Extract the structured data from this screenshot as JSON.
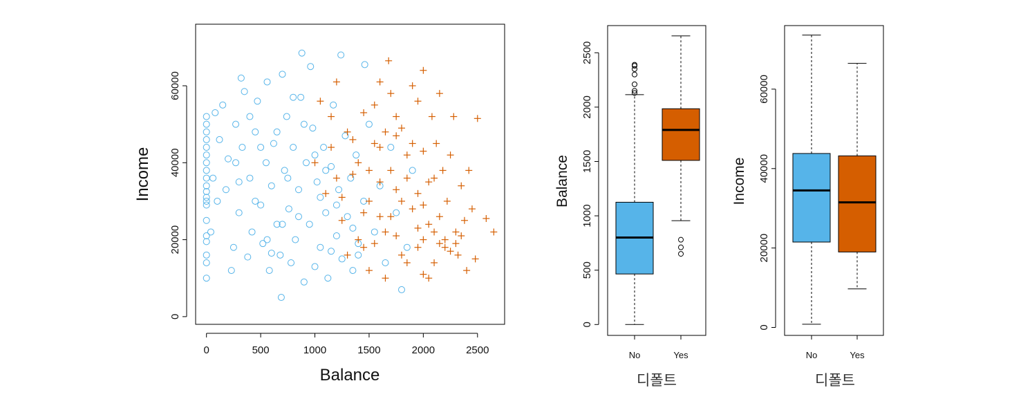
{
  "colors": {
    "no": "#56b4e9",
    "yes": "#d55e00",
    "axis": "#000000"
  },
  "chart_data": [
    {
      "type": "scatter",
      "xlabel": "Balance",
      "ylabel": "Income",
      "xlim": [
        -100,
        2750
      ],
      "ylim": [
        -2000,
        76000
      ],
      "xticks": [
        "0",
        "500",
        "1000",
        "1500",
        "2000",
        "2500"
      ],
      "xtick_values": [
        0,
        500,
        1000,
        1500,
        2000,
        2500
      ],
      "yticks": [
        "0",
        "20000",
        "40000",
        "60000"
      ],
      "ytick_values": [
        0,
        20000,
        40000,
        60000
      ],
      "series": [
        {
          "name": "No",
          "marker": "circle",
          "color": "#56b4e9",
          "points": [
            [
              0,
              10000
            ],
            [
              0,
              14000
            ],
            [
              0,
              16000
            ],
            [
              0,
              19500
            ],
            [
              0,
              21000
            ],
            [
              0,
              25000
            ],
            [
              0,
              29000
            ],
            [
              0,
              30000
            ],
            [
              0,
              31000
            ],
            [
              0,
              32500
            ],
            [
              0,
              34000
            ],
            [
              0,
              36000
            ],
            [
              0,
              38000
            ],
            [
              0,
              40000
            ],
            [
              0,
              42000
            ],
            [
              0,
              44000
            ],
            [
              0,
              46000
            ],
            [
              0,
              48000
            ],
            [
              0,
              50000
            ],
            [
              0,
              52000
            ],
            [
              40,
              22000
            ],
            [
              60,
              36000
            ],
            [
              80,
              53000
            ],
            [
              100,
              30000
            ],
            [
              120,
              46000
            ],
            [
              150,
              55000
            ],
            [
              180,
              33000
            ],
            [
              200,
              41000
            ],
            [
              230,
              12000
            ],
            [
              250,
              18000
            ],
            [
              270,
              50000
            ],
            [
              300,
              27000
            ],
            [
              330,
              44000
            ],
            [
              350,
              58500
            ],
            [
              380,
              15500
            ],
            [
              400,
              36000
            ],
            [
              420,
              22000
            ],
            [
              450,
              48000
            ],
            [
              470,
              56000
            ],
            [
              500,
              29000
            ],
            [
              520,
              19000
            ],
            [
              550,
              40000
            ],
            [
              560,
              61000
            ],
            [
              580,
              12000
            ],
            [
              600,
              34000
            ],
            [
              620,
              45000
            ],
            [
              650,
              24000
            ],
            [
              680,
              16000
            ],
            [
              700,
              63000
            ],
            [
              720,
              38000
            ],
            [
              740,
              52000
            ],
            [
              760,
              28000
            ],
            [
              780,
              14000
            ],
            [
              800,
              44000
            ],
            [
              820,
              20000
            ],
            [
              850,
              33000
            ],
            [
              870,
              57000
            ],
            [
              900,
              9000
            ],
            [
              920,
              40000
            ],
            [
              950,
              24000
            ],
            [
              980,
              49000
            ],
            [
              1000,
              13000
            ],
            [
              1020,
              35000
            ],
            [
              1050,
              18000
            ],
            [
              1080,
              44000
            ],
            [
              1100,
              27000
            ],
            [
              1120,
              10000
            ],
            [
              1150,
              39000
            ],
            [
              1170,
              55000
            ],
            [
              1200,
              21000
            ],
            [
              1220,
              33000
            ],
            [
              1250,
              15000
            ],
            [
              1280,
              47000
            ],
            [
              1300,
              26000
            ],
            [
              1330,
              36000
            ],
            [
              1350,
              12000
            ],
            [
              1380,
              42000
            ],
            [
              1400,
              19000
            ],
            [
              1450,
              30000
            ],
            [
              1500,
              50000
            ],
            [
              1550,
              22000
            ],
            [
              1600,
              34000
            ],
            [
              1650,
              14000
            ],
            [
              1700,
              44000
            ],
            [
              1750,
              27000
            ],
            [
              1800,
              7000
            ],
            [
              1850,
              18000
            ],
            [
              1900,
              38000
            ],
            [
              320,
              62000
            ],
            [
              690,
              5000
            ],
            [
              880,
              68500
            ],
            [
              1240,
              68000
            ],
            [
              1460,
              65500
            ],
            [
              960,
              65000
            ],
            [
              450,
              30000
            ],
            [
              650,
              48000
            ],
            [
              850,
              26000
            ],
            [
              1050,
              31000
            ],
            [
              270,
              40000
            ],
            [
              560,
              20000
            ],
            [
              750,
              36000
            ],
            [
              1150,
              17000
            ],
            [
              1350,
              23000
            ],
            [
              400,
              52000
            ],
            [
              600,
              16500
            ],
            [
              800,
              57000
            ],
            [
              1000,
              42000
            ],
            [
              1200,
              29000
            ],
            [
              1400,
              16000
            ],
            [
              300,
              35000
            ],
            [
              500,
              44000
            ],
            [
              700,
              24000
            ],
            [
              900,
              50000
            ],
            [
              1100,
              38000
            ]
          ]
        },
        {
          "name": "Yes",
          "marker": "plus",
          "color": "#d55e00",
          "points": [
            [
              1000,
              40000
            ],
            [
              1050,
              56000
            ],
            [
              1100,
              32000
            ],
            [
              1150,
              44000
            ],
            [
              1200,
              61000
            ],
            [
              1250,
              25000
            ],
            [
              1300,
              48000
            ],
            [
              1350,
              37000
            ],
            [
              1400,
              20000
            ],
            [
              1450,
              53000
            ],
            [
              1500,
              30000
            ],
            [
              1550,
              45000
            ],
            [
              1600,
              61000
            ],
            [
              1650,
              22000
            ],
            [
              1680,
              66500
            ],
            [
              1700,
              38000
            ],
            [
              1750,
              52000
            ],
            [
              1800,
              16000
            ],
            [
              1850,
              42000
            ],
            [
              1900,
              28000
            ],
            [
              1950,
              56000
            ],
            [
              2000,
              64000
            ],
            [
              2000,
              20000
            ],
            [
              2050,
              35000
            ],
            [
              2080,
              52000
            ],
            [
              2100,
              14000
            ],
            [
              2120,
              45000
            ],
            [
              2150,
              26000
            ],
            [
              2180,
              38000
            ],
            [
              2200,
              18000
            ],
            [
              2220,
              30000
            ],
            [
              2250,
              42000
            ],
            [
              2280,
              52000
            ],
            [
              2300,
              22000
            ],
            [
              2320,
              16000
            ],
            [
              2350,
              34000
            ],
            [
              2380,
              25000
            ],
            [
              2400,
              12000
            ],
            [
              2420,
              38000
            ],
            [
              2450,
              28000
            ],
            [
              2480,
              15000
            ],
            [
              2500,
              51500
            ],
            [
              2580,
              25500
            ],
            [
              2650,
              22000
            ],
            [
              1500,
              12000
            ],
            [
              1650,
              10000
            ],
            [
              1800,
              30000
            ],
            [
              1950,
              18000
            ],
            [
              2050,
              10000
            ],
            [
              2150,
              58000
            ],
            [
              1300,
              16000
            ],
            [
              1400,
              40000
            ],
            [
              1550,
              55000
            ],
            [
              1600,
              35000
            ],
            [
              1700,
              26000
            ],
            [
              1750,
              47000
            ],
            [
              1850,
              36000
            ],
            [
              1950,
              32000
            ],
            [
              2000,
              43000
            ],
            [
              2100,
              22000
            ],
            [
              2200,
              20000
            ],
            [
              2300,
              19000
            ],
            [
              1200,
              36000
            ],
            [
              1450,
              27000
            ],
            [
              1650,
              48000
            ],
            [
              1900,
              60000
            ],
            [
              2050,
              24000
            ],
            [
              2250,
              17000
            ],
            [
              1550,
              19000
            ],
            [
              1750,
              21000
            ],
            [
              1950,
              23000
            ],
            [
              2150,
              19000
            ],
            [
              1850,
              14000
            ],
            [
              2000,
              11000
            ],
            [
              1700,
              58000
            ],
            [
              1350,
              46000
            ],
            [
              1500,
              38000
            ],
            [
              1600,
              44000
            ],
            [
              1800,
              49000
            ],
            [
              1900,
              45000
            ],
            [
              2100,
              36000
            ],
            [
              2350,
              21000
            ],
            [
              2000,
              29000
            ],
            [
              1750,
              33000
            ],
            [
              1600,
              26000
            ],
            [
              1450,
              18000
            ],
            [
              1250,
              31000
            ],
            [
              1150,
              52000
            ]
          ]
        }
      ]
    },
    {
      "type": "boxplot",
      "xlabel": "디폴트",
      "ylabel": "Balance",
      "categories": [
        "No",
        "Yes"
      ],
      "ylim": [
        -100,
        2750
      ],
      "yticks": [
        "0",
        "500",
        "1000",
        "1500",
        "2000",
        "2500"
      ],
      "ytick_values": [
        0,
        500,
        1000,
        1500,
        2000,
        2500
      ],
      "series": [
        {
          "name": "No",
          "color": "#56b4e9",
          "whisker_low": 0,
          "q1": 465,
          "median": 800,
          "q3": 1125,
          "whisker_high": 2115,
          "outliers": [
            2130,
            2150,
            2210,
            2300,
            2350,
            2380,
            2390
          ]
        },
        {
          "name": "Yes",
          "color": "#d55e00",
          "whisker_low": 955,
          "q1": 1510,
          "median": 1790,
          "q3": 1985,
          "whisker_high": 2655,
          "outliers": [
            780,
            710,
            650
          ]
        }
      ]
    },
    {
      "type": "boxplot",
      "xlabel": "디폴트",
      "ylabel": "Income",
      "categories": [
        "No",
        "Yes"
      ],
      "ylim": [
        -2000,
        76000
      ],
      "yticks": [
        "0",
        "20000",
        "40000",
        "60000"
      ],
      "ytick_values": [
        0,
        20000,
        40000,
        60000
      ],
      "series": [
        {
          "name": "No",
          "color": "#56b4e9",
          "whisker_low": 800,
          "q1": 21500,
          "median": 34500,
          "q3": 43800,
          "whisker_high": 73600,
          "outliers": []
        },
        {
          "name": "Yes",
          "color": "#d55e00",
          "whisker_low": 9700,
          "q1": 19000,
          "median": 31500,
          "q3": 43200,
          "whisker_high": 66500,
          "outliers": []
        }
      ]
    }
  ]
}
